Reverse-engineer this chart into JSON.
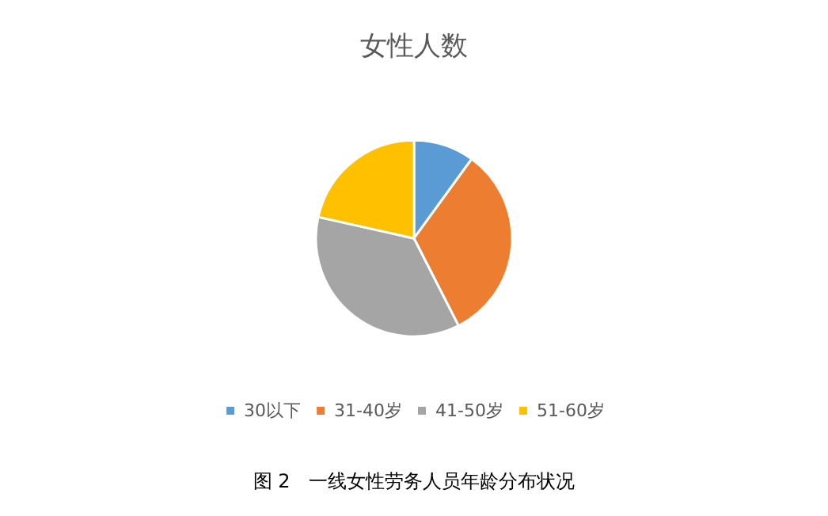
{
  "chart_data": {
    "type": "pie",
    "title": "女性人数",
    "categories": [
      "30以下",
      "31-40岁",
      "41-50岁",
      "51-60岁"
    ],
    "values": [
      10,
      32.5,
      36,
      21.5
    ],
    "colors": [
      "#5b9bd5",
      "#ed7d31",
      "#a5a5a5",
      "#ffc000"
    ],
    "legend": "bottom",
    "annotations": [
      "图 2　一线女性劳务人员年龄分布状况"
    ]
  }
}
